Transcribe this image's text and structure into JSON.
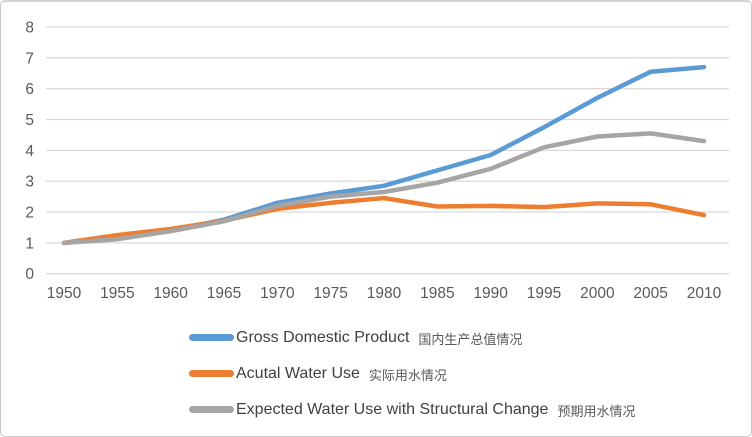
{
  "colors": {
    "background": "#FFFFFF",
    "border": "#C9C9C9",
    "gridline": "#D9D9D9",
    "axis_text": "#595959",
    "legend_text_en": "#404040",
    "legend_text_zh": "#595959",
    "series_blue": "#5B9BD5",
    "series_orange": "#ED7D31",
    "series_gray": "#A5A5A5"
  },
  "chart_data": {
    "type": "line",
    "title": "",
    "xlabel": "",
    "ylabel": "",
    "x": [
      1950,
      1955,
      1960,
      1965,
      1970,
      1975,
      1980,
      1985,
      1990,
      1995,
      2000,
      2005,
      2010
    ],
    "ylim": [
      0,
      8
    ],
    "ytick_step": 1,
    "yticks": [
      0,
      1,
      2,
      3,
      4,
      5,
      6,
      7,
      8
    ],
    "grid": true,
    "legend_position": "bottom-left",
    "series": [
      {
        "name": "gross-domestic-product",
        "label_en": "Gross Domestic Product",
        "label_zh": "国内生产总值情况",
        "color": "#5B9BD5",
        "values": [
          1.0,
          1.15,
          1.4,
          1.75,
          2.3,
          2.6,
          2.85,
          3.35,
          3.85,
          4.75,
          5.7,
          6.55,
          6.7
        ]
      },
      {
        "name": "actual-water-use",
        "label_en": "Acutal Water Use",
        "label_zh": "实际用水情况",
        "color": "#ED7D31",
        "values": [
          1.0,
          1.25,
          1.45,
          1.72,
          2.1,
          2.3,
          2.45,
          2.18,
          2.2,
          2.16,
          2.28,
          2.25,
          1.9
        ]
      },
      {
        "name": "expected-water-use-structural-change",
        "label_en": "Expected Water Use with Structural Change",
        "label_zh": "预期用水情况",
        "color": "#A5A5A5",
        "values": [
          1.0,
          1.12,
          1.38,
          1.7,
          2.2,
          2.5,
          2.65,
          2.95,
          3.4,
          4.1,
          4.45,
          4.55,
          4.3
        ]
      }
    ]
  }
}
